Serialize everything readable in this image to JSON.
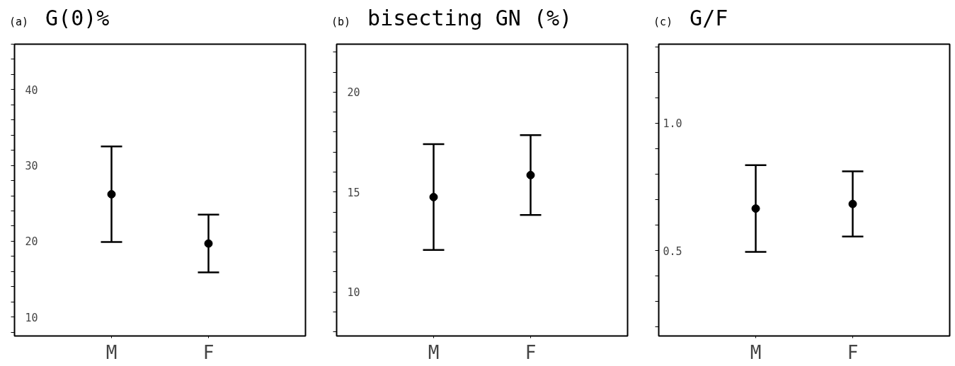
{
  "chart_data": [
    {
      "type": "scatter",
      "title": "G(0)%",
      "annotations": [
        "(a)"
      ],
      "categories": [
        "M",
        "F"
      ],
      "values": [
        26.2,
        19.7
      ],
      "errors": [
        6.3,
        3.8
      ],
      "color": "#000000",
      "marker": "circle",
      "grid": false,
      "ylim": [
        7.5,
        46
      ],
      "yticks": [
        {
          "value": 8,
          "label": null
        },
        10,
        {
          "value": 12,
          "label": null
        },
        {
          "value": 14,
          "label": null
        },
        {
          "value": 16,
          "label": null
        },
        {
          "value": 18,
          "label": null
        },
        20,
        {
          "value": 22,
          "label": null
        },
        {
          "value": 24,
          "label": null
        },
        {
          "value": 26,
          "label": null
        },
        {
          "value": 28,
          "label": null
        },
        30,
        {
          "value": 32,
          "label": null
        },
        {
          "value": 34,
          "label": null
        },
        {
          "value": 36,
          "label": null
        },
        {
          "value": 38,
          "label": null
        },
        40,
        {
          "value": 42,
          "label": null
        },
        {
          "value": 44,
          "label": null
        },
        {
          "value": 46,
          "label": null
        }
      ]
    },
    {
      "type": "scatter",
      "title": "bisecting GN (%)",
      "annotations": [
        "(b)"
      ],
      "categories": [
        "M",
        "F"
      ],
      "values": [
        14.75,
        15.85
      ],
      "errors": [
        2.65,
        2.0
      ],
      "color": "#000000",
      "marker": "circle",
      "grid": false,
      "ylim": [
        7.8,
        22.4
      ],
      "yticks": [
        {
          "value": 8,
          "label": null
        },
        {
          "value": 9,
          "label": null
        },
        10,
        {
          "value": 11,
          "label": null
        },
        {
          "value": 12,
          "label": null
        },
        {
          "value": 13,
          "label": null
        },
        {
          "value": 14,
          "label": null
        },
        15,
        {
          "value": 16,
          "label": null
        },
        {
          "value": 17,
          "label": null
        },
        {
          "value": 18,
          "label": null
        },
        {
          "value": 19,
          "label": null
        },
        20,
        {
          "value": 21,
          "label": null
        },
        {
          "value": 22,
          "label": null
        }
      ]
    },
    {
      "type": "scatter",
      "title": "G/F",
      "annotations": [
        "(c)"
      ],
      "categories": [
        "M",
        "F"
      ],
      "values": [
        0.665,
        0.683
      ],
      "errors": [
        0.17,
        0.128
      ],
      "color": "#000000",
      "marker": "circle",
      "grid": false,
      "ylim": [
        0.165,
        1.31
      ],
      "yticks": [
        {
          "value": 0.2,
          "label": null
        },
        {
          "value": 0.3,
          "label": null
        },
        {
          "value": 0.4,
          "label": null
        },
        {
          "value": 0.5,
          "label": "0.5"
        },
        {
          "value": 0.6,
          "label": null
        },
        {
          "value": 0.7,
          "label": null
        },
        {
          "value": 0.8,
          "label": null
        },
        {
          "value": 0.9,
          "label": null
        },
        {
          "value": 1.0,
          "label": "1.0"
        },
        {
          "value": 1.1,
          "label": null
        },
        {
          "value": 1.2,
          "label": null
        },
        {
          "value": 1.3,
          "label": null
        }
      ]
    }
  ]
}
